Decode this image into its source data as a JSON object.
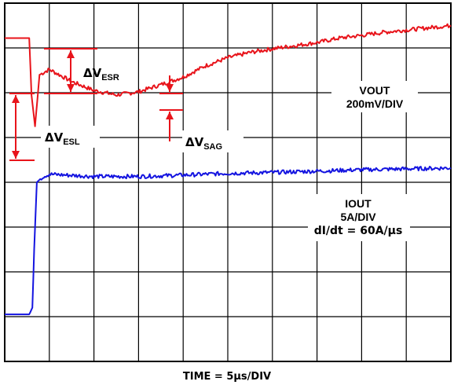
{
  "chart_data": {
    "type": "line",
    "grid": true,
    "x_divisions": 10,
    "y_divisions": 8,
    "xlabel_text": "TIME = 5μs/DIV",
    "series": [
      {
        "name": "VOUT",
        "scale": "200mV/DIV",
        "color": "#e8141b",
        "points": [
          [
            0,
            7.22
          ],
          [
            0.55,
            7.22
          ],
          [
            0.6,
            5.95
          ],
          [
            0.68,
            5.25
          ],
          [
            0.78,
            6.4
          ],
          [
            1.0,
            6.52
          ],
          [
            1.5,
            6.25
          ],
          [
            2.0,
            6.05
          ],
          [
            2.5,
            5.95
          ],
          [
            3.0,
            6.02
          ],
          [
            3.5,
            6.18
          ],
          [
            4.0,
            6.35
          ],
          [
            4.5,
            6.6
          ],
          [
            5.0,
            6.78
          ],
          [
            5.5,
            6.9
          ],
          [
            6.0,
            6.98
          ],
          [
            6.5,
            7.05
          ],
          [
            7.0,
            7.12
          ],
          [
            7.5,
            7.22
          ],
          [
            8.0,
            7.28
          ],
          [
            8.5,
            7.35
          ],
          [
            9.0,
            7.4
          ],
          [
            9.5,
            7.45
          ],
          [
            10.0,
            7.5
          ]
        ]
      },
      {
        "name": "IOUT",
        "scale": "5A/DIV",
        "slew_rate": "dI/dt = 60A/μs",
        "color": "#1414e0",
        "points": [
          [
            0,
            1.05
          ],
          [
            0.55,
            1.05
          ],
          [
            0.62,
            1.2
          ],
          [
            0.66,
            2.5
          ],
          [
            0.72,
            4.0
          ],
          [
            0.85,
            4.12
          ],
          [
            1.0,
            4.18
          ],
          [
            2.0,
            4.13
          ],
          [
            3.0,
            4.13
          ],
          [
            4.0,
            4.16
          ],
          [
            5.0,
            4.2
          ],
          [
            6.0,
            4.22
          ],
          [
            7.0,
            4.25
          ],
          [
            8.0,
            4.28
          ],
          [
            9.0,
            4.3
          ],
          [
            10.0,
            4.32
          ]
        ]
      }
    ],
    "annotations": [
      {
        "id": "esr",
        "main": "ΔV",
        "sub": "ESR"
      },
      {
        "id": "esl",
        "main": "ΔV",
        "sub": "ESL"
      },
      {
        "id": "sag",
        "main": "ΔV",
        "sub": "SAG"
      }
    ]
  }
}
